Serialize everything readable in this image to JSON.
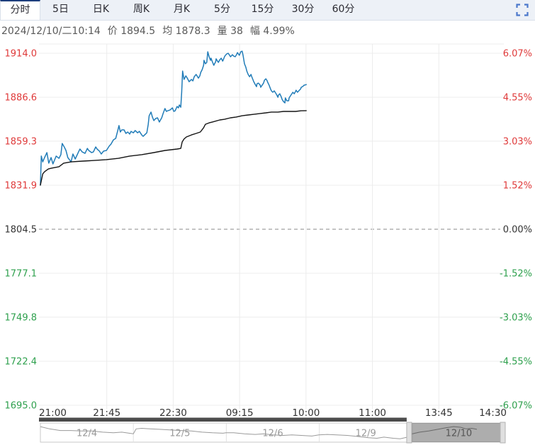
{
  "tabs": {
    "items": [
      {
        "name": "tab-intraday",
        "label": "分时",
        "active": true
      },
      {
        "name": "tab-5day",
        "label": "5日",
        "active": false
      },
      {
        "name": "tab-daily-k",
        "label": "日K",
        "active": false
      },
      {
        "name": "tab-weekly-k",
        "label": "周K",
        "active": false
      },
      {
        "name": "tab-monthly-k",
        "label": "月K",
        "active": false
      },
      {
        "name": "tab-5min",
        "label": "5分",
        "active": false
      },
      {
        "name": "tab-15min",
        "label": "15分",
        "active": false
      },
      {
        "name": "tab-30min",
        "label": "30分",
        "active": false
      },
      {
        "name": "tab-60min",
        "label": "60分",
        "active": false
      }
    ],
    "fullscreen_icon": "expand-corners"
  },
  "info": {
    "segments": [
      {
        "label": "",
        "value": "2024/12/10/二10:14"
      },
      {
        "label": "价 ",
        "value": "1894.5"
      },
      {
        "label": "均 ",
        "value": "1878.3"
      },
      {
        "label": "量 ",
        "value": "38"
      },
      {
        "label": "幅 ",
        "value": "4.99%"
      }
    ]
  },
  "colors": {
    "up": "#df3a3a",
    "down": "#2ea04d",
    "axis_neutral": "#333333",
    "price_line": "#217cb8",
    "avg_line": "#141414",
    "grid": "#ececec",
    "zero_line": "#8a8a8a",
    "time_text": "#333333",
    "scrollbar_thumb": "#4b4b4b",
    "nav_border": "#c8c8c8",
    "nav_divider": "#e2e2e2",
    "nav_spark": "#9a9a9a",
    "nav_label": "#999999",
    "nav_label_selected": "#555555",
    "selection_fill": "#000000",
    "selection_handle": "#e0e0e0",
    "selection_handle_border": "#b2b2b2",
    "fullscreen_blue": "#4d79cc"
  },
  "chart_data": {
    "type": "line",
    "title": "",
    "x_ticks": [
      "21:00",
      "21:45",
      "22:30",
      "09:15",
      "10:00",
      "11:00",
      "13:45",
      "14:30"
    ],
    "y_left_ticks": [
      "1914.0",
      "1886.6",
      "1859.3",
      "1831.9",
      "1804.5",
      "1777.1",
      "1749.8",
      "1722.4",
      "1695.0"
    ],
    "y_right_ticks": [
      "6.07%",
      "4.55%",
      "3.03%",
      "1.52%",
      "0.00%",
      "-1.52%",
      "-3.03%",
      "-4.55%",
      "-6.07%"
    ],
    "y_range": [
      1695.0,
      1914.0
    ],
    "zero_value": 1804.5,
    "grid": true,
    "legend": "none",
    "series": [
      {
        "name": "price",
        "color_key": "price_line",
        "points": [
          [
            0.0,
            1831.9
          ],
          [
            0.002,
            1850.0
          ],
          [
            0.005,
            1846.4
          ],
          [
            0.009,
            1849.1
          ],
          [
            0.014,
            1852.2
          ],
          [
            0.018,
            1845.6
          ],
          [
            0.023,
            1849.1
          ],
          [
            0.027,
            1845.1
          ],
          [
            0.034,
            1850.0
          ],
          [
            0.04,
            1848.6
          ],
          [
            0.044,
            1850.9
          ],
          [
            0.047,
            1857.9
          ],
          [
            0.052,
            1855.3
          ],
          [
            0.055,
            1853.5
          ],
          [
            0.059,
            1849.1
          ],
          [
            0.066,
            1846.4
          ],
          [
            0.07,
            1851.3
          ],
          [
            0.075,
            1848.2
          ],
          [
            0.082,
            1852.6
          ],
          [
            0.085,
            1854.4
          ],
          [
            0.09,
            1852.6
          ],
          [
            0.096,
            1851.7
          ],
          [
            0.101,
            1854.8
          ],
          [
            0.104,
            1853.5
          ],
          [
            0.11,
            1852.2
          ],
          [
            0.114,
            1852.6
          ],
          [
            0.119,
            1855.7
          ],
          [
            0.122,
            1854.4
          ],
          [
            0.127,
            1853.1
          ],
          [
            0.131,
            1851.3
          ],
          [
            0.136,
            1853.1
          ],
          [
            0.142,
            1853.5
          ],
          [
            0.148,
            1856.2
          ],
          [
            0.152,
            1857.5
          ],
          [
            0.157,
            1860.1
          ],
          [
            0.162,
            1861.0
          ],
          [
            0.166,
            1865.4
          ],
          [
            0.169,
            1869.0
          ],
          [
            0.172,
            1865.0
          ],
          [
            0.175,
            1866.3
          ],
          [
            0.18,
            1866.3
          ],
          [
            0.184,
            1864.1
          ],
          [
            0.188,
            1865.0
          ],
          [
            0.192,
            1863.7
          ],
          [
            0.195,
            1865.4
          ],
          [
            0.2,
            1864.5
          ],
          [
            0.204,
            1865.9
          ],
          [
            0.209,
            1864.5
          ],
          [
            0.213,
            1865.4
          ],
          [
            0.218,
            1863.2
          ],
          [
            0.221,
            1862.3
          ],
          [
            0.226,
            1863.7
          ],
          [
            0.229,
            1864.5
          ],
          [
            0.232,
            1869.8
          ],
          [
            0.234,
            1875.1
          ],
          [
            0.238,
            1877.4
          ],
          [
            0.241,
            1874.3
          ],
          [
            0.244,
            1872.1
          ],
          [
            0.248,
            1873.4
          ],
          [
            0.252,
            1873.8
          ],
          [
            0.256,
            1871.2
          ],
          [
            0.261,
            1873.8
          ],
          [
            0.264,
            1876.5
          ],
          [
            0.268,
            1879.6
          ],
          [
            0.271,
            1877.8
          ],
          [
            0.274,
            1878.2
          ],
          [
            0.279,
            1878.7
          ],
          [
            0.284,
            1880.0
          ],
          [
            0.287,
            1877.8
          ],
          [
            0.29,
            1878.2
          ],
          [
            0.294,
            1880.9
          ],
          [
            0.297,
            1880.0
          ],
          [
            0.299,
            1881.8
          ],
          [
            0.302,
            1880.4
          ],
          [
            0.304,
            1889.7
          ],
          [
            0.306,
            1902.9
          ],
          [
            0.309,
            1897.7
          ],
          [
            0.313,
            1899.9
          ],
          [
            0.316,
            1898.5
          ],
          [
            0.32,
            1896.3
          ],
          [
            0.325,
            1897.7
          ],
          [
            0.328,
            1896.8
          ],
          [
            0.331,
            1899.4
          ],
          [
            0.335,
            1900.8
          ],
          [
            0.34,
            1898.5
          ],
          [
            0.343,
            1899.9
          ],
          [
            0.345,
            1902.1
          ],
          [
            0.348,
            1903.8
          ],
          [
            0.351,
            1906.5
          ],
          [
            0.352,
            1909.6
          ],
          [
            0.355,
            1907.4
          ],
          [
            0.358,
            1908.3
          ],
          [
            0.36,
            1914.9
          ],
          [
            0.363,
            1911.8
          ],
          [
            0.366,
            1909.6
          ],
          [
            0.367,
            1910.9
          ],
          [
            0.37,
            1908.7
          ],
          [
            0.373,
            1906.5
          ],
          [
            0.377,
            1908.7
          ],
          [
            0.378,
            1910.5
          ],
          [
            0.381,
            1909.1
          ],
          [
            0.383,
            1908.3
          ],
          [
            0.386,
            1910.0
          ],
          [
            0.389,
            1910.9
          ],
          [
            0.392,
            1909.1
          ],
          [
            0.393,
            1909.6
          ],
          [
            0.396,
            1911.8
          ],
          [
            0.398,
            1912.7
          ],
          [
            0.401,
            1913.6
          ],
          [
            0.404,
            1914.0
          ],
          [
            0.407,
            1912.7
          ],
          [
            0.409,
            1911.8
          ],
          [
            0.412,
            1912.7
          ],
          [
            0.413,
            1913.1
          ],
          [
            0.416,
            1912.2
          ],
          [
            0.419,
            1911.8
          ],
          [
            0.422,
            1913.1
          ],
          [
            0.424,
            1914.4
          ],
          [
            0.427,
            1913.1
          ],
          [
            0.428,
            1912.7
          ],
          [
            0.431,
            1914.9
          ],
          [
            0.434,
            1915.3
          ],
          [
            0.436,
            1912.7
          ],
          [
            0.439,
            1907.4
          ],
          [
            0.442,
            1905.2
          ],
          [
            0.444,
            1902.9
          ],
          [
            0.447,
            1900.8
          ],
          [
            0.45,
            1899.4
          ],
          [
            0.453,
            1900.8
          ],
          [
            0.454,
            1899.9
          ],
          [
            0.457,
            1897.7
          ],
          [
            0.459,
            1896.3
          ],
          [
            0.462,
            1894.6
          ],
          [
            0.465,
            1893.2
          ],
          [
            0.466,
            1895.0
          ],
          [
            0.469,
            1895.4
          ],
          [
            0.473,
            1894.1
          ],
          [
            0.474,
            1892.8
          ],
          [
            0.477,
            1894.1
          ],
          [
            0.48,
            1895.4
          ],
          [
            0.482,
            1897.2
          ],
          [
            0.485,
            1898.1
          ],
          [
            0.488,
            1896.8
          ],
          [
            0.489,
            1895.9
          ],
          [
            0.492,
            1894.1
          ],
          [
            0.495,
            1891.9
          ],
          [
            0.497,
            1890.6
          ],
          [
            0.5,
            1889.7
          ],
          [
            0.503,
            1890.6
          ],
          [
            0.508,
            1888.4
          ],
          [
            0.511,
            1886.6
          ],
          [
            0.512,
            1887.9
          ],
          [
            0.515,
            1888.8
          ],
          [
            0.518,
            1887.0
          ],
          [
            0.52,
            1885.3
          ],
          [
            0.523,
            1883.9
          ],
          [
            0.526,
            1883.1
          ],
          [
            0.527,
            1886.2
          ],
          [
            0.53,
            1884.4
          ],
          [
            0.534,
            1884.4
          ],
          [
            0.535,
            1886.2
          ],
          [
            0.538,
            1887.5
          ],
          [
            0.541,
            1888.8
          ],
          [
            0.543,
            1889.7
          ],
          [
            0.546,
            1888.8
          ],
          [
            0.549,
            1890.2
          ],
          [
            0.55,
            1891.0
          ],
          [
            0.553,
            1889.7
          ],
          [
            0.556,
            1890.6
          ],
          [
            0.56,
            1891.9
          ],
          [
            0.561,
            1892.8
          ],
          [
            0.564,
            1893.2
          ],
          [
            0.567,
            1894.1
          ],
          [
            0.572,
            1894.5
          ]
        ]
      },
      {
        "name": "average",
        "color_key": "avg_line",
        "points": [
          [
            0.0,
            1831.9
          ],
          [
            0.005,
            1838.9
          ],
          [
            0.009,
            1840.3
          ],
          [
            0.017,
            1842.0
          ],
          [
            0.024,
            1842.5
          ],
          [
            0.04,
            1843.4
          ],
          [
            0.05,
            1845.6
          ],
          [
            0.066,
            1846.4
          ],
          [
            0.091,
            1846.9
          ],
          [
            0.116,
            1847.3
          ],
          [
            0.142,
            1847.8
          ],
          [
            0.168,
            1848.6
          ],
          [
            0.192,
            1850.0
          ],
          [
            0.218,
            1850.9
          ],
          [
            0.244,
            1852.2
          ],
          [
            0.268,
            1853.5
          ],
          [
            0.294,
            1854.4
          ],
          [
            0.302,
            1854.8
          ],
          [
            0.305,
            1858.8
          ],
          [
            0.309,
            1860.6
          ],
          [
            0.314,
            1861.9
          ],
          [
            0.325,
            1863.2
          ],
          [
            0.335,
            1864.1
          ],
          [
            0.344,
            1865.0
          ],
          [
            0.351,
            1867.6
          ],
          [
            0.355,
            1869.8
          ],
          [
            0.363,
            1870.7
          ],
          [
            0.37,
            1871.2
          ],
          [
            0.386,
            1872.5
          ],
          [
            0.396,
            1872.9
          ],
          [
            0.409,
            1873.8
          ],
          [
            0.421,
            1874.3
          ],
          [
            0.434,
            1875.1
          ],
          [
            0.447,
            1875.6
          ],
          [
            0.459,
            1876.0
          ],
          [
            0.473,
            1876.5
          ],
          [
            0.485,
            1876.9
          ],
          [
            0.497,
            1877.4
          ],
          [
            0.511,
            1877.4
          ],
          [
            0.523,
            1877.8
          ],
          [
            0.535,
            1877.8
          ],
          [
            0.549,
            1877.8
          ],
          [
            0.561,
            1878.2
          ],
          [
            0.572,
            1878.3
          ]
        ]
      }
    ],
    "navigator": {
      "dates": [
        "12/4",
        "12/5",
        "12/6",
        "12/9",
        "12/10"
      ],
      "selected": "12/10",
      "selection_range": [
        0.788,
        1.0
      ],
      "sparkline": [
        [
          0.0,
          0.15
        ],
        [
          0.02,
          0.3
        ],
        [
          0.043,
          0.41
        ],
        [
          0.066,
          0.41
        ],
        [
          0.088,
          0.44
        ],
        [
          0.111,
          0.44
        ],
        [
          0.134,
          0.52
        ],
        [
          0.157,
          0.56
        ],
        [
          0.175,
          0.52
        ],
        [
          0.191,
          0.59
        ],
        [
          0.2,
          0.63
        ],
        [
          0.206,
          0.3
        ],
        [
          0.218,
          0.26
        ],
        [
          0.236,
          0.3
        ],
        [
          0.256,
          0.33
        ],
        [
          0.279,
          0.37
        ],
        [
          0.302,
          0.41
        ],
        [
          0.325,
          0.44
        ],
        [
          0.348,
          0.52
        ],
        [
          0.37,
          0.56
        ],
        [
          0.393,
          0.59
        ],
        [
          0.399,
          0.56
        ],
        [
          0.416,
          0.56
        ],
        [
          0.439,
          0.63
        ],
        [
          0.462,
          0.67
        ],
        [
          0.48,
          0.63
        ],
        [
          0.5,
          0.7
        ],
        [
          0.523,
          0.74
        ],
        [
          0.541,
          0.7
        ],
        [
          0.561,
          0.74
        ],
        [
          0.584,
          0.78
        ],
        [
          0.599,
          0.7
        ],
        [
          0.617,
          0.67
        ],
        [
          0.637,
          0.7
        ],
        [
          0.66,
          0.74
        ],
        [
          0.683,
          0.81
        ],
        [
          0.706,
          0.89
        ],
        [
          0.724,
          0.93
        ],
        [
          0.739,
          0.85
        ],
        [
          0.759,
          0.93
        ],
        [
          0.774,
          0.96
        ],
        [
          0.79,
          0.85
        ],
        [
          0.8,
          0.63
        ],
        [
          0.816,
          0.52
        ],
        [
          0.835,
          0.44
        ],
        [
          0.855,
          0.33
        ],
        [
          0.873,
          0.22
        ],
        [
          0.889,
          0.15
        ],
        [
          0.904,
          0.19
        ],
        [
          0.916,
          0.3
        ],
        [
          0.928,
          0.26
        ],
        [
          0.939,
          0.33
        ]
      ],
      "scrollbar_thumb_range": [
        0.0,
        0.788
      ]
    }
  }
}
